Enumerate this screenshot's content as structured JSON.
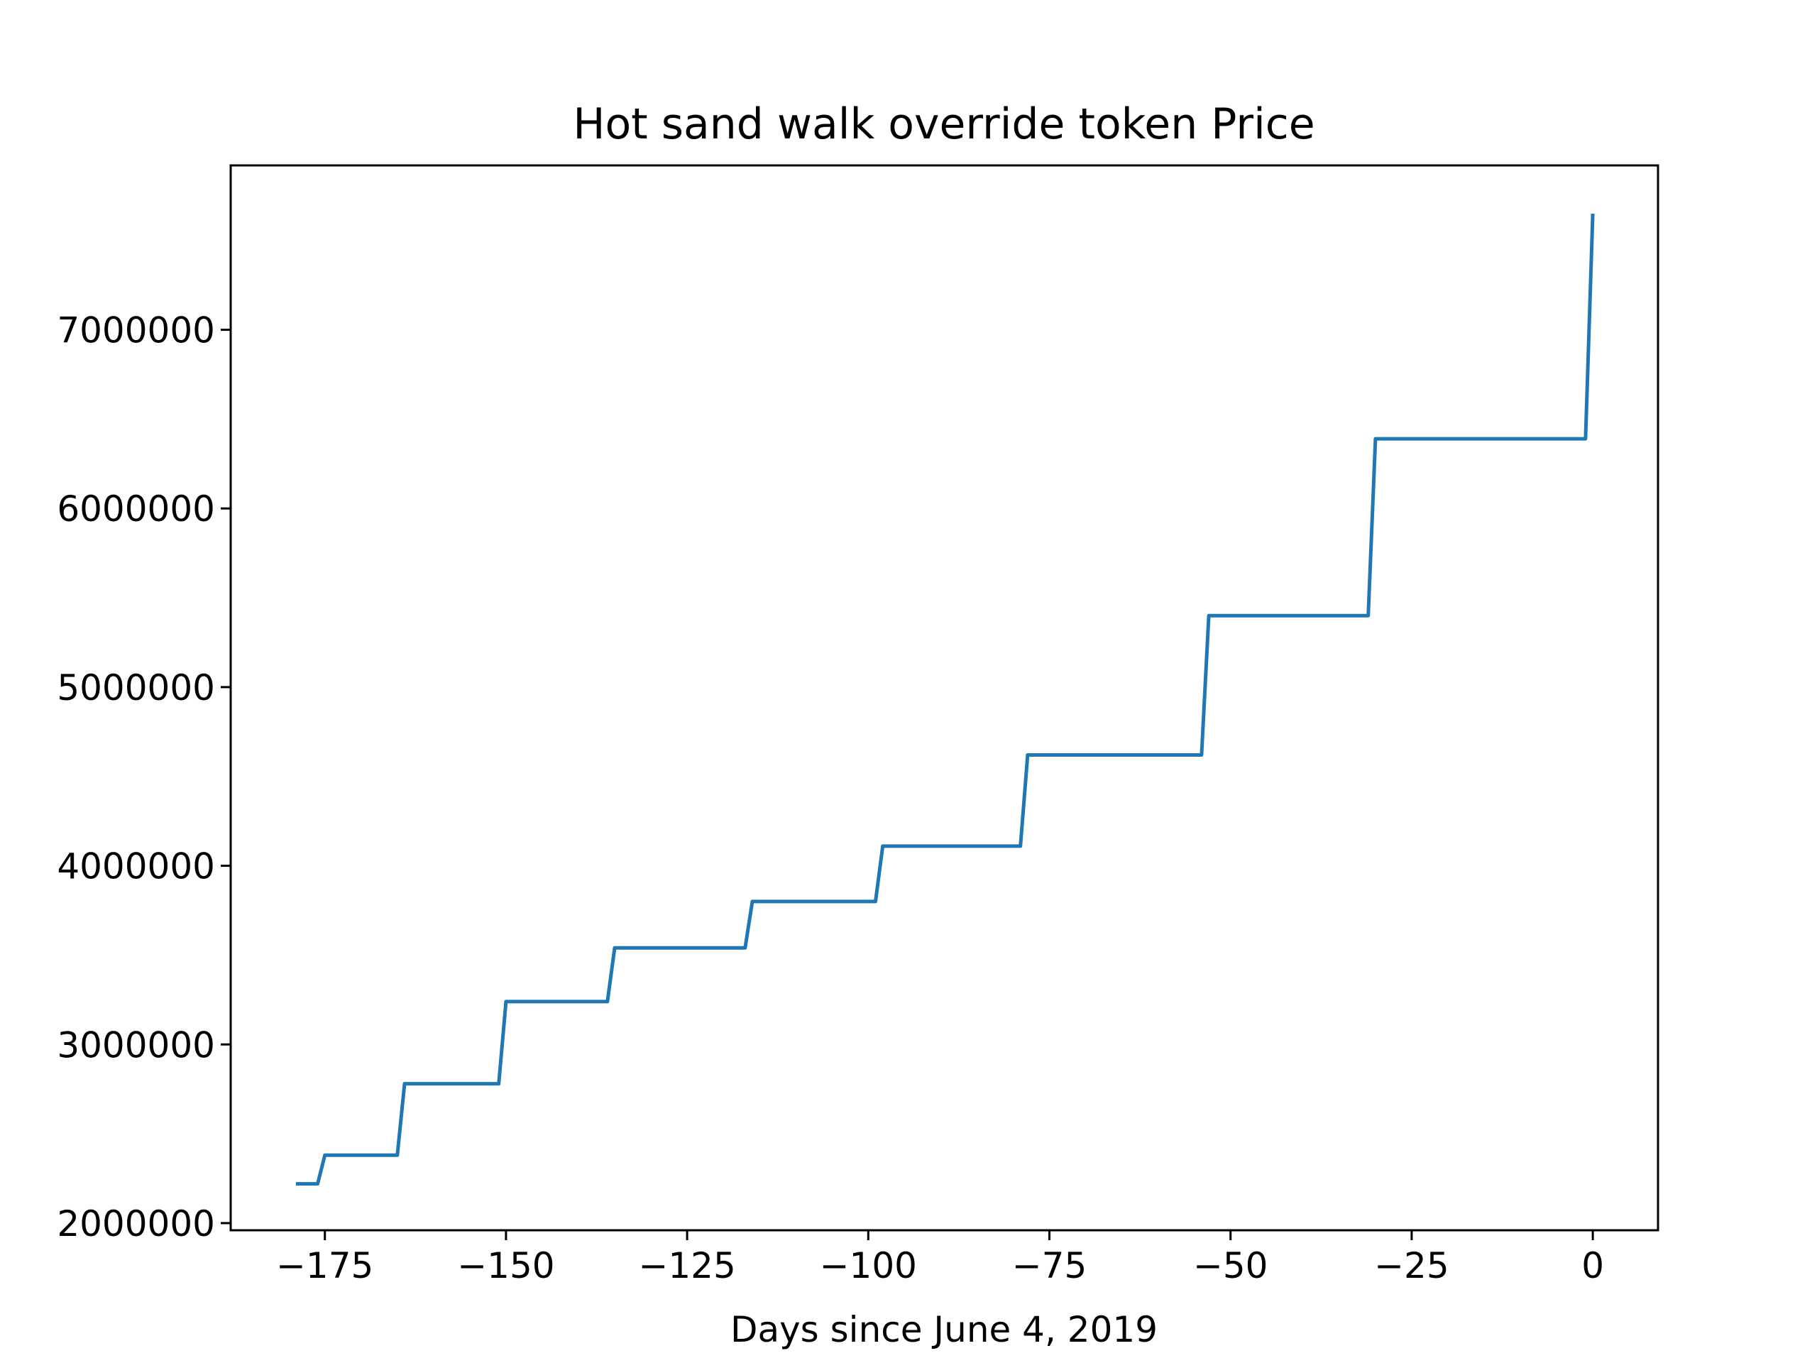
{
  "chart_data": {
    "type": "line",
    "title": "Hot sand walk override token Price",
    "xlabel": "Days since June 4, 2019",
    "ylabel": "",
    "xlim": [
      -188,
      9
    ],
    "ylim": [
      1960000,
      7920000
    ],
    "xticks": [
      -175,
      -150,
      -125,
      -100,
      -75,
      -50,
      -25,
      0
    ],
    "xtick_labels": [
      "−175",
      "−150",
      "−125",
      "−100",
      "−75",
      "−50",
      "−25",
      "0"
    ],
    "yticks": [
      2000000,
      3000000,
      4000000,
      5000000,
      6000000,
      7000000
    ],
    "ytick_labels": [
      "2000000",
      "3000000",
      "4000000",
      "5000000",
      "6000000",
      "7000000"
    ],
    "grid": false,
    "legend": "none",
    "series": [
      {
        "color": "#1f77b4",
        "x": [
          -179,
          -176,
          -175,
          -165,
          -164,
          -151,
          -150,
          -136,
          -135,
          -117,
          -116,
          -99,
          -98,
          -79,
          -78,
          -54,
          -53,
          -31,
          -30,
          -1,
          0
        ],
        "y": [
          2220000,
          2220000,
          2380000,
          2380000,
          2780000,
          2780000,
          3240000,
          3240000,
          3540000,
          3540000,
          3800000,
          3800000,
          4110000,
          4110000,
          4620000,
          4620000,
          5400000,
          5400000,
          6390000,
          6390000,
          7650000
        ]
      }
    ]
  }
}
